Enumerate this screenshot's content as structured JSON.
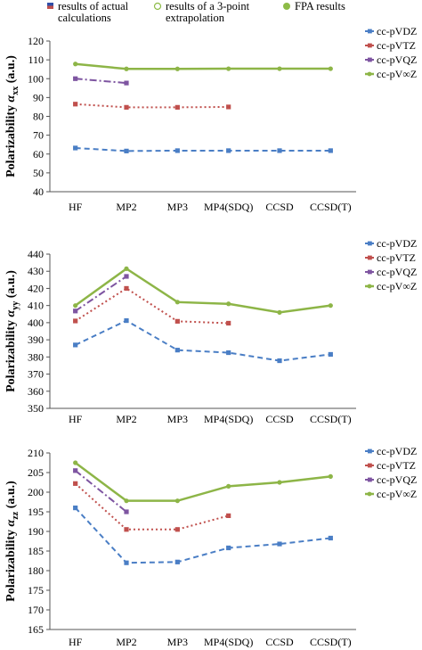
{
  "header_legend": [
    {
      "label": "results of actual\ncalculations",
      "marker": "square-split",
      "color": "#2f4ea8"
    },
    {
      "label": "results of a 3-point\nextrapolation",
      "marker": "open-circle",
      "color": "#8dbb47"
    },
    {
      "label": "FPA results",
      "marker": "filled-circle",
      "color": "#8dbb47"
    }
  ],
  "colors": {
    "cc-pVDZ": "#4a7ec5",
    "cc-pVTZ": "#c0504d",
    "cc-pVQZ": "#7e55a1",
    "cc-pV∞Z": "#8db547"
  },
  "chart_data": [
    {
      "type": "line",
      "ylabel": "Polarizability α_xx (a.u.)",
      "ylabel_main": "Polarizability ",
      "ylabel_symbol": "α",
      "ylabel_sub": "xx",
      "ylabel_unit": " (a.u.)",
      "categories": [
        "HF",
        "MP2",
        "MP3",
        "MP4(SDQ)",
        "CCSD",
        "CCSD(T)"
      ],
      "ylim": [
        40,
        120
      ],
      "yticks": [
        40,
        50,
        60,
        70,
        80,
        90,
        100,
        110,
        120
      ],
      "grid": false,
      "legend_position": "right",
      "series": [
        {
          "name": "cc-pVDZ",
          "values": [
            63.2,
            61.6,
            61.8,
            61.8,
            61.8,
            61.8
          ]
        },
        {
          "name": "cc-pVTZ",
          "values": [
            86.5,
            84.8,
            84.8,
            85.0,
            null,
            null
          ]
        },
        {
          "name": "cc-pVQZ",
          "values": [
            100.0,
            97.7,
            null,
            null,
            null,
            null
          ]
        },
        {
          "name": "cc-pV∞Z",
          "values": [
            107.8,
            105.2,
            105.2,
            105.3,
            105.3,
            105.3
          ]
        }
      ]
    },
    {
      "type": "line",
      "ylabel": "Polarizability α_yy (a.u.)",
      "ylabel_main": "Polarizability ",
      "ylabel_symbol": "α",
      "ylabel_sub": "yy",
      "ylabel_unit": " (a.u.)",
      "categories": [
        "HF",
        "MP2",
        "MP3",
        "MP4(SDQ)",
        "CCSD",
        "CCSD(T)"
      ],
      "ylim": [
        350,
        440
      ],
      "yticks": [
        350,
        360,
        370,
        380,
        390,
        400,
        410,
        420,
        430,
        440
      ],
      "grid": false,
      "legend_position": "right",
      "series": [
        {
          "name": "cc-pVDZ",
          "values": [
            387.0,
            401.2,
            384.0,
            382.5,
            377.8,
            381.5
          ]
        },
        {
          "name": "cc-pVTZ",
          "values": [
            401.0,
            420.0,
            400.8,
            399.7,
            null,
            null
          ]
        },
        {
          "name": "cc-pVQZ",
          "values": [
            406.8,
            427.0,
            null,
            null,
            null,
            null
          ]
        },
        {
          "name": "cc-pV∞Z",
          "values": [
            410.0,
            431.5,
            412.0,
            411.0,
            406.0,
            410.0
          ]
        }
      ]
    },
    {
      "type": "line",
      "ylabel": "Polarizability α_zz (a.u.)",
      "ylabel_main": "Polarizability ",
      "ylabel_symbol": "α",
      "ylabel_sub": "zz",
      "ylabel_unit": " (a.u.)",
      "categories": [
        "HF",
        "MP2",
        "MP3",
        "MP4(SDQ)",
        "CCSD",
        "CCSD(T)"
      ],
      "ylim": [
        165,
        210
      ],
      "yticks": [
        165,
        170,
        175,
        180,
        185,
        190,
        195,
        200,
        205,
        210
      ],
      "grid": false,
      "legend_position": "right",
      "series": [
        {
          "name": "cc-pVDZ",
          "values": [
            196.0,
            182.0,
            182.2,
            185.8,
            186.8,
            188.3
          ]
        },
        {
          "name": "cc-pVTZ",
          "values": [
            202.2,
            190.5,
            190.5,
            194.0,
            null,
            null
          ]
        },
        {
          "name": "cc-pVQZ",
          "values": [
            205.5,
            195.0,
            null,
            null,
            null,
            null
          ]
        },
        {
          "name": "cc-pV∞Z",
          "values": [
            207.5,
            197.8,
            197.8,
            201.5,
            202.5,
            204.0
          ]
        }
      ]
    }
  ]
}
